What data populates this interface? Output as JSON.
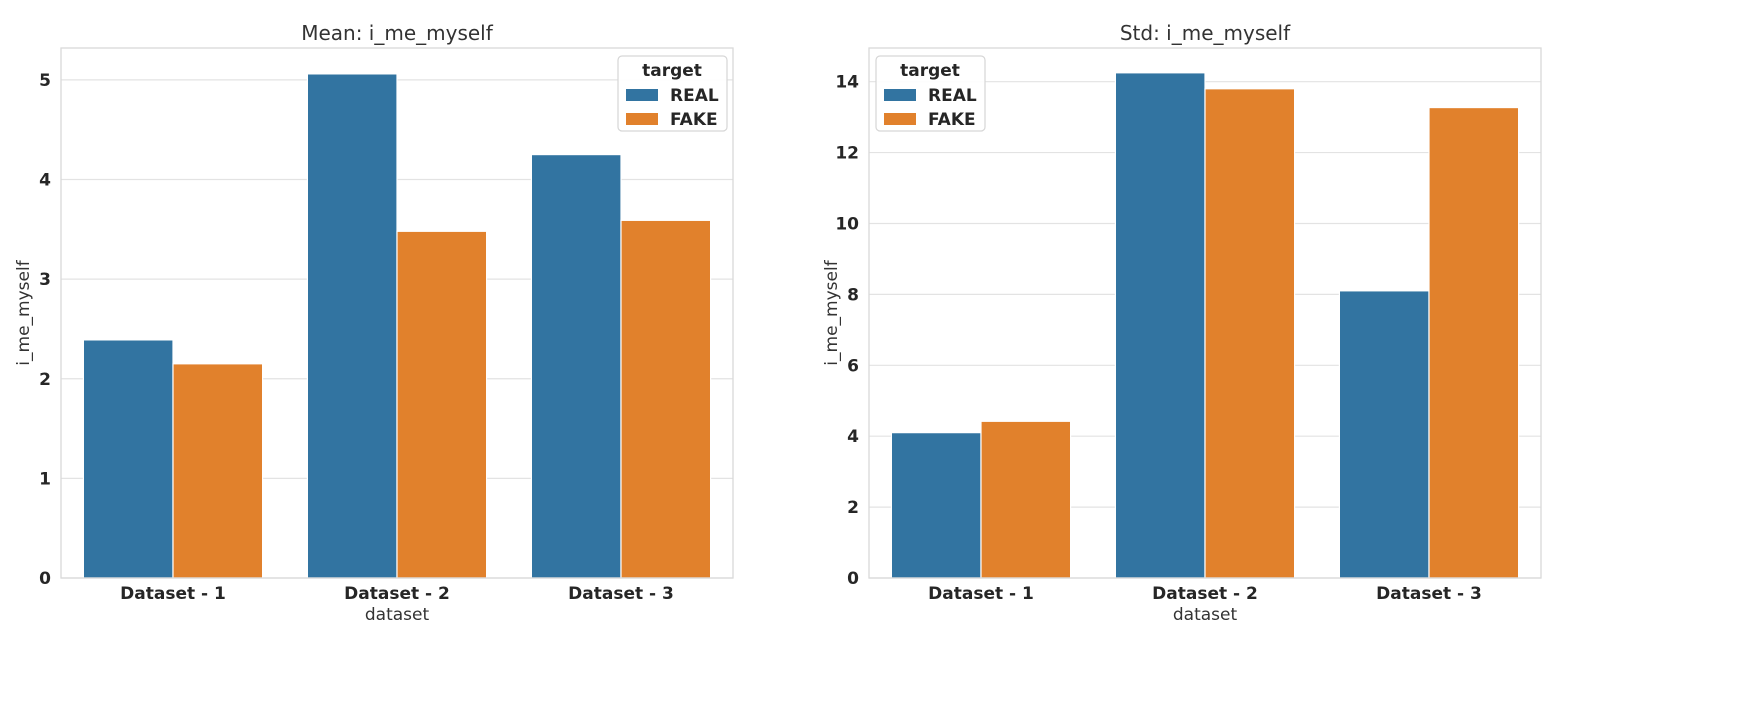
{
  "chart_data": [
    {
      "type": "bar",
      "title": "Mean: i_me_myself",
      "xlabel": "dataset",
      "ylabel": "i_me_myself",
      "categories": [
        "Dataset - 1",
        "Dataset - 2",
        "Dataset - 3"
      ],
      "series": [
        {
          "name": "REAL",
          "color": "#3274a1",
          "values": [
            2.39,
            5.06,
            4.25
          ]
        },
        {
          "name": "FAKE",
          "color": "#e1812c",
          "values": [
            2.15,
            3.48,
            3.59
          ]
        }
      ],
      "ylim": [
        0,
        5.32
      ],
      "yticks": [
        0,
        1,
        2,
        3,
        4,
        5
      ],
      "grid": true,
      "legend": {
        "title": "target",
        "placement": "top-right"
      }
    },
    {
      "type": "bar",
      "title": "Std: i_me_myself",
      "xlabel": "dataset",
      "ylabel": "i_me_myself",
      "categories": [
        "Dataset - 1",
        "Dataset - 2",
        "Dataset - 3"
      ],
      "series": [
        {
          "name": "REAL",
          "color": "#3274a1",
          "values": [
            4.1,
            14.25,
            8.1
          ]
        },
        {
          "name": "FAKE",
          "color": "#e1812c",
          "values": [
            4.42,
            13.8,
            13.27
          ]
        }
      ],
      "ylim": [
        0,
        14.95
      ],
      "yticks": [
        0,
        2,
        4,
        6,
        8,
        10,
        12,
        14
      ],
      "grid": true,
      "legend": {
        "title": "target",
        "placement": "top-left"
      }
    }
  ]
}
